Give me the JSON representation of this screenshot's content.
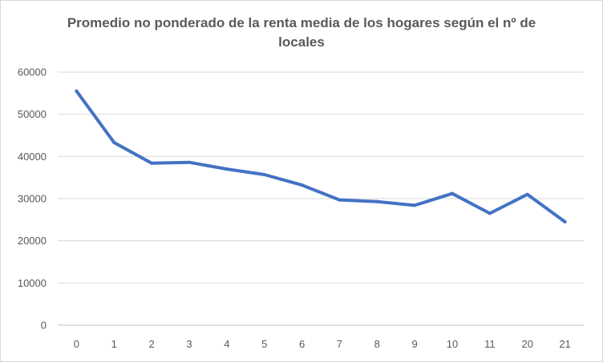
{
  "chart_data": {
    "type": "line",
    "title": "Promedio no ponderado de la renta media de los hogares según el nº de locales",
    "xlabel": "",
    "ylabel": "",
    "categories": [
      "0",
      "1",
      "2",
      "3",
      "4",
      "5",
      "6",
      "7",
      "8",
      "9",
      "10",
      "11",
      "20",
      "21"
    ],
    "series": [
      {
        "values": [
          55500,
          43300,
          38400,
          38600,
          37000,
          35700,
          33200,
          29700,
          29300,
          28400,
          31200,
          26500,
          31000,
          24500
        ],
        "color": "#4472C4"
      }
    ],
    "ylim": [
      0,
      60000
    ],
    "yticks": [
      "0",
      "10000",
      "20000",
      "30000",
      "40000",
      "50000",
      "60000"
    ],
    "grid": true,
    "legend": "none"
  }
}
